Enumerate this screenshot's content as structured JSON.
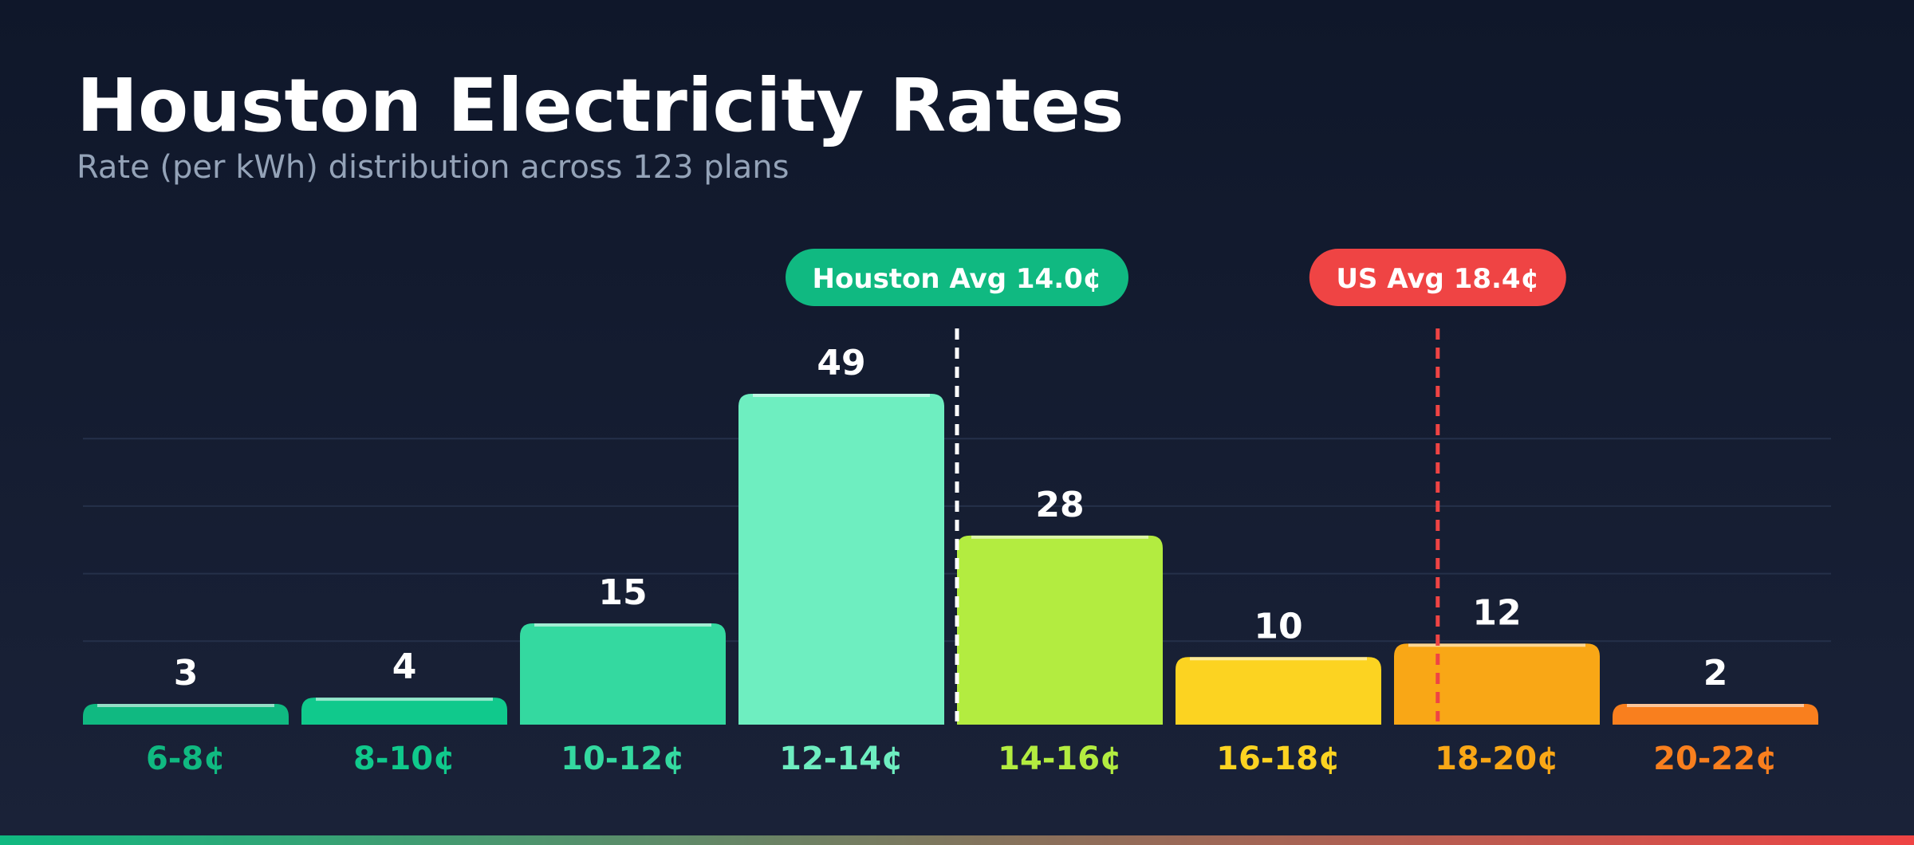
{
  "header": {
    "title": "Houston Electricity Rates",
    "subtitle": "Rate (per kWh) distribution across 123 plans"
  },
  "chart_data": {
    "type": "bar",
    "title": "Houston Electricity Rates",
    "subtitle": "Rate (per kWh) distribution across 123 plans",
    "xlabel": "",
    "ylabel": "",
    "categories": [
      "6-8¢",
      "8-10¢",
      "10-12¢",
      "12-14¢",
      "14-16¢",
      "16-18¢",
      "18-20¢",
      "20-22¢"
    ],
    "values": [
      3,
      4,
      15,
      49,
      28,
      10,
      12,
      2
    ],
    "bar_colors": [
      "#10b981",
      "#10c98c",
      "#34d9a0",
      "#6eeec0",
      "#b3ec40",
      "#fcd321",
      "#f9a716",
      "#f97f1e"
    ],
    "label_colors": [
      "#10b981",
      "#10c98c",
      "#34d9a0",
      "#6eeec0",
      "#b3ec40",
      "#fcd321",
      "#f9a716",
      "#f97f1e"
    ],
    "ylim": [
      0,
      50
    ],
    "grid": true,
    "reference_lines": [
      {
        "label": "Houston Avg 14.0¢",
        "value": 14.0,
        "color": "#10b981",
        "line_color": "#ffffff"
      },
      {
        "label": "US Avg 18.4¢",
        "value": 18.4,
        "color": "#ef4444",
        "line_color": "#ef4444"
      }
    ],
    "x_domain": [
      6,
      22
    ]
  }
}
